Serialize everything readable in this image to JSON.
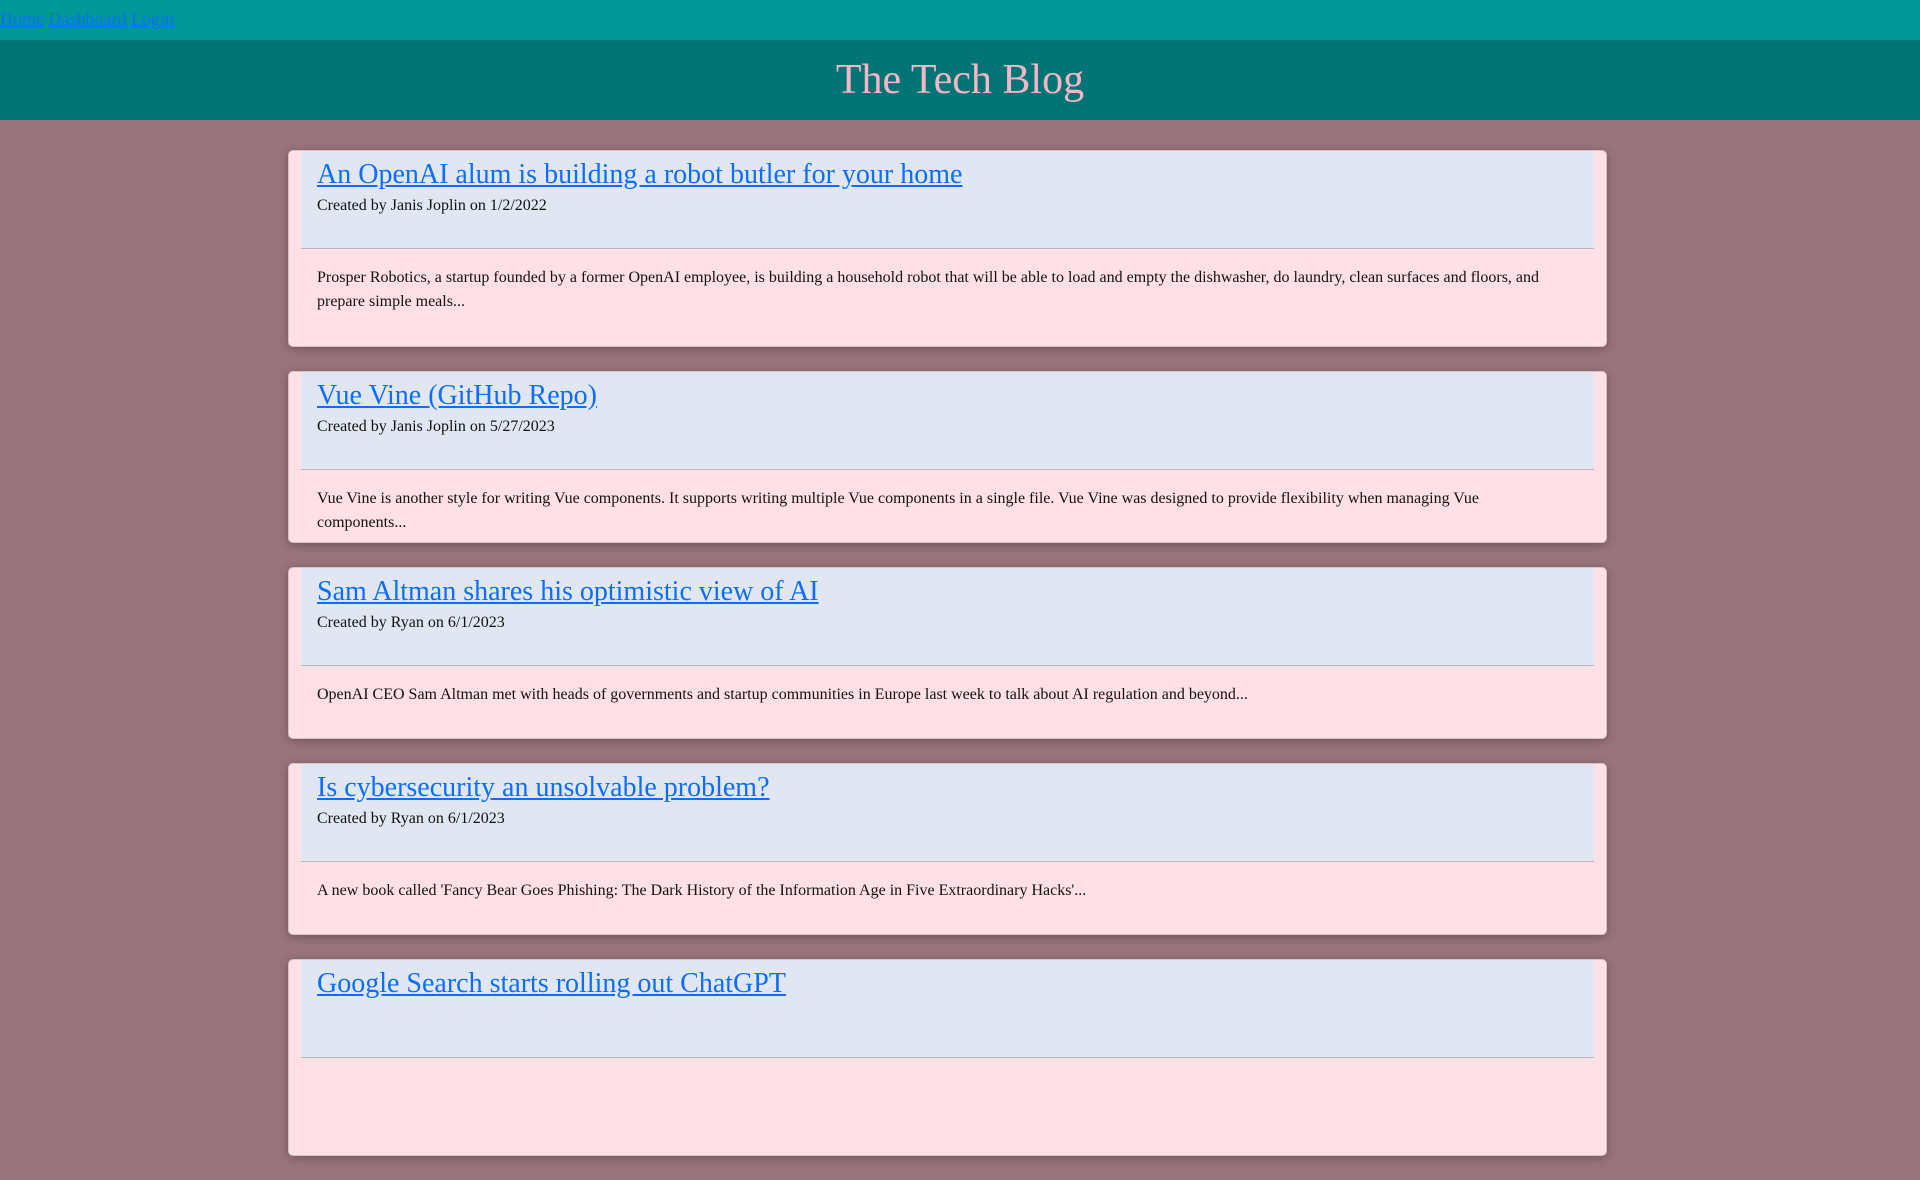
{
  "nav": {
    "home": "Home",
    "dashboard": "Dashboard",
    "login": "Login"
  },
  "header": {
    "title": "The Tech Blog"
  },
  "posts": [
    {
      "title": "An OpenAI alum is building a robot butler for your home",
      "meta": "Created by Janis Joplin on 1/2/2022",
      "excerpt": "Prosper Robotics, a startup founded by a former OpenAI employee, is building a household robot that will be able to load and empty the dishwasher, do laundry, clean surfaces and floors, and prepare simple meals..."
    },
    {
      "title": "Vue Vine (GitHub Repo)",
      "meta": "Created by Janis Joplin on 5/27/2023",
      "excerpt": "Vue Vine is another style for writing Vue components. It supports writing multiple Vue components in a single file. Vue Vine was designed to provide flexibility when managing Vue components..."
    },
    {
      "title": "Sam Altman shares his optimistic view of AI",
      "meta": "Created by Ryan on 6/1/2023",
      "excerpt": "OpenAI CEO Sam Altman met with heads of governments and startup communities in Europe last week to talk about AI regulation and beyond..."
    },
    {
      "title": "Is cybersecurity an unsolvable problem?",
      "meta": "Created by Ryan on 6/1/2023",
      "excerpt": "A new book called 'Fancy Bear Goes Phishing: The Dark History of the Information Age in Five Extraordinary Hacks'..."
    },
    {
      "title": "Google Search starts rolling out ChatGPT"
    }
  ]
}
